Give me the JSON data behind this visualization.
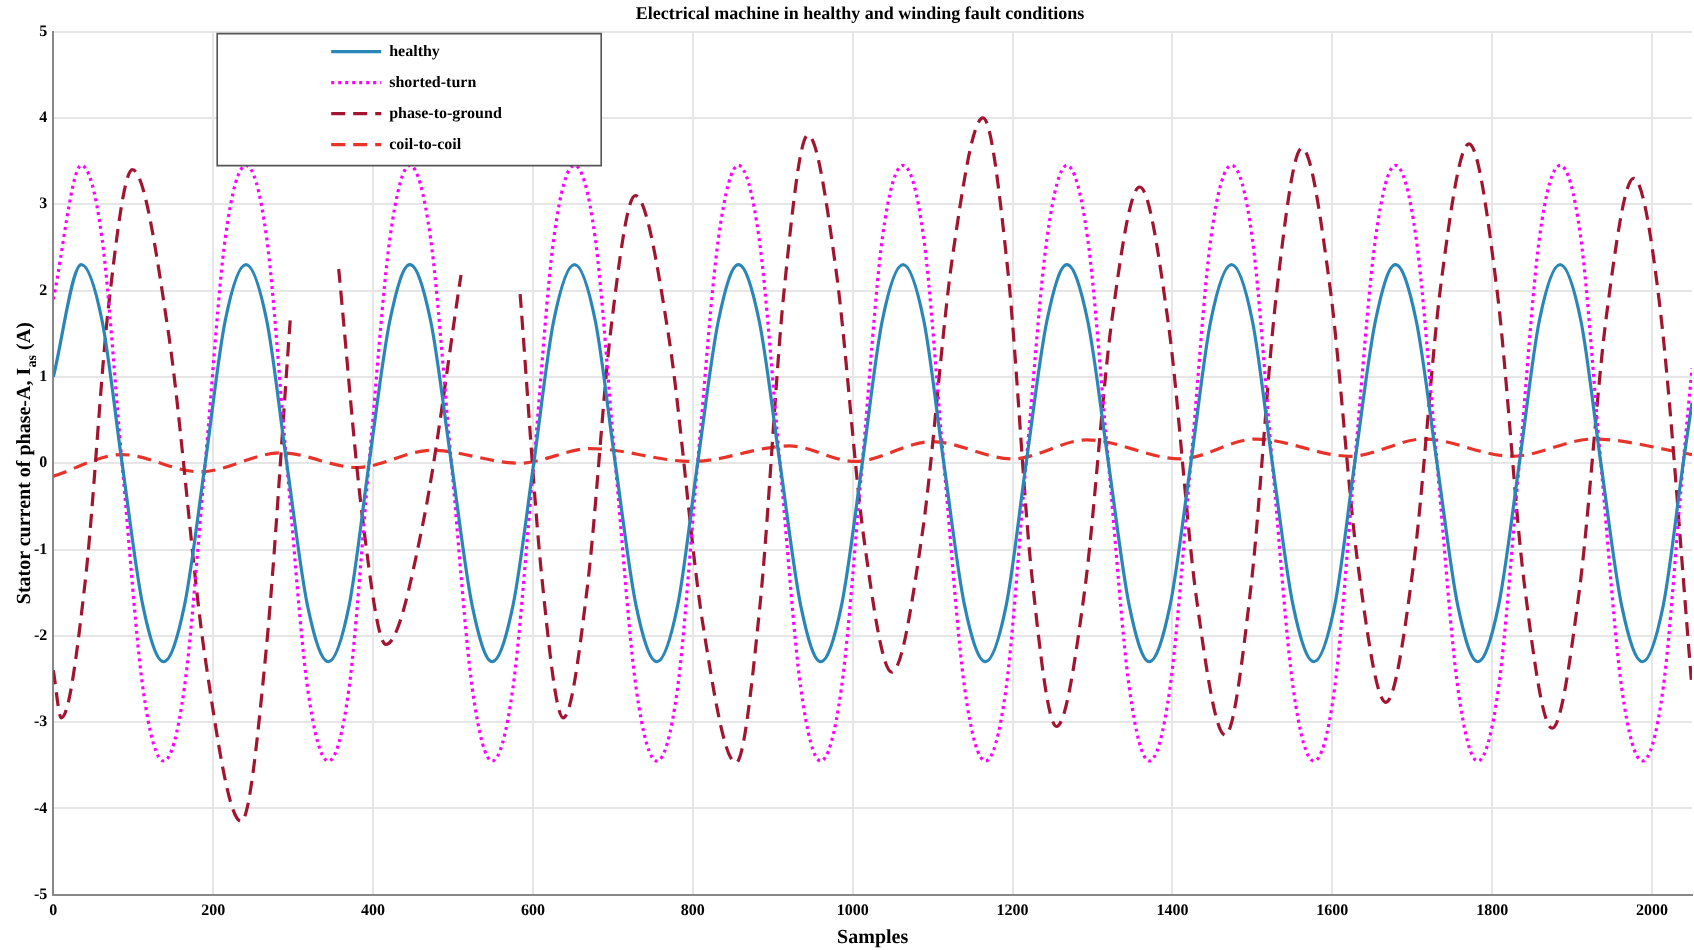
{
  "chart_data": {
    "type": "line",
    "title": "Electrical machine in healthy and winding fault conditions",
    "xlabel": "Samples",
    "ylabel": "Stator current of phase-A, I$_{as}$ (A)",
    "x": [
      0,
      35,
      61,
      86,
      112,
      138,
      164,
      190,
      215,
      241,
      267,
      292,
      318,
      344,
      370,
      395,
      421,
      446,
      472,
      498,
      524,
      549,
      575,
      601,
      626,
      652,
      678,
      703,
      729,
      755,
      781,
      806,
      832,
      857,
      883,
      909,
      935,
      960,
      986,
      1012,
      1037,
      1063,
      1089,
      1114,
      1140,
      1166,
      1192,
      1217,
      1243,
      1268,
      1294,
      1320,
      1346,
      1371,
      1397,
      1423,
      1448,
      1474,
      1500,
      1525,
      1551,
      1577,
      1603,
      1628,
      1654,
      1679,
      1705,
      1731,
      1757,
      1782,
      1808,
      1834,
      1859,
      1885,
      1911,
      1936,
      1962,
      1988,
      2014,
      2039,
      2050
    ],
    "series": [
      {
        "name": "healthy",
        "color": "#2b86b8",
        "line_style": "solid",
        "values": [
          1.0,
          2.3,
          1.65,
          0,
          -1.65,
          -2.3,
          -1.65,
          0,
          1.65,
          2.3,
          1.65,
          0,
          -1.65,
          -2.3,
          -1.65,
          0,
          1.65,
          2.3,
          1.65,
          0,
          -1.65,
          -2.3,
          -1.65,
          0,
          1.65,
          2.3,
          1.65,
          0,
          -1.65,
          -2.3,
          -1.65,
          0,
          1.65,
          2.3,
          1.65,
          0,
          -1.65,
          -2.3,
          -1.65,
          0,
          1.65,
          2.3,
          1.65,
          0,
          -1.65,
          -2.3,
          -1.65,
          0,
          1.65,
          2.3,
          1.65,
          0,
          -1.65,
          -2.3,
          -1.65,
          0,
          1.65,
          2.3,
          1.65,
          0,
          -1.65,
          -2.3,
          -1.65,
          0,
          1.65,
          2.3,
          1.65,
          0,
          -1.65,
          -2.3,
          -1.65,
          0,
          1.65,
          2.3,
          1.65,
          0,
          -1.65,
          -2.3,
          -1.65,
          0,
          0.7
        ]
      },
      {
        "name": "shorted-turn",
        "color": "#ff00ff",
        "line_style": "dotted",
        "values": [
          1.9,
          3.45,
          2.6,
          0,
          -2.6,
          -3.45,
          -2.6,
          0,
          2.6,
          3.45,
          2.6,
          0,
          -2.6,
          -3.45,
          -2.6,
          0,
          2.6,
          3.45,
          2.6,
          0,
          -2.6,
          -3.45,
          -2.6,
          0,
          2.6,
          3.45,
          2.6,
          0,
          -2.6,
          -3.45,
          -2.6,
          0,
          2.6,
          3.45,
          2.6,
          0,
          -2.6,
          -3.45,
          -2.6,
          0,
          2.6,
          3.45,
          2.6,
          0,
          -2.6,
          -3.45,
          -2.6,
          0,
          2.6,
          3.45,
          2.6,
          0,
          -2.6,
          -3.45,
          -2.6,
          0,
          2.6,
          3.45,
          2.6,
          0,
          -2.6,
          -3.45,
          -2.6,
          0,
          2.6,
          3.45,
          2.6,
          0,
          -2.6,
          -3.45,
          -2.6,
          0,
          2.6,
          3.45,
          2.6,
          0,
          -2.6,
          -3.45,
          -2.6,
          0,
          1.1
        ]
      },
      {
        "name": "phase-to-ground",
        "color": "#a2142f",
        "line_style": "dashed",
        "x": [
          0,
          10,
          40,
          69,
          99,
          144,
          190,
          235,
          266,
          297,
          328,
          357,
          387,
          416,
          463,
          510,
          557,
          584,
          611,
          638,
          668,
          698,
          728,
          770,
          812,
          854,
          884,
          914,
          944,
          979,
          1014,
          1049,
          1087,
          1125,
          1163,
          1194,
          1224,
          1255,
          1290,
          1324,
          1359,
          1395,
          1430,
          1466,
          1498,
          1530,
          1562,
          1597,
          1632,
          1667,
          1702,
          1736,
          1771,
          1806,
          1840,
          1875,
          1909,
          1943,
          1977,
          2010,
          2050
        ],
        "values": [
          -2.4,
          -2.95,
          -1.36,
          1.81,
          3.4,
          1.51,
          -2.26,
          -4.15,
          -2.19,
          1.74,
          null,
          2.25,
          -0.65,
          -2.1,
          -0.67,
          2.18,
          null,
          1.96,
          -1.31,
          -2.95,
          -1.44,
          1.59,
          3.1,
          1.46,
          -1.83,
          -3.47,
          -1.65,
          1.98,
          3.8,
          2.25,
          -0.87,
          -2.42,
          -0.82,
          2.4,
          4.0,
          2.24,
          -1.29,
          -3.05,
          -1.49,
          1.64,
          3.2,
          1.61,
          -1.56,
          -3.15,
          -1.45,
          1.95,
          3.65,
          2.05,
          -1.17,
          -2.77,
          -1.15,
          2.08,
          3.7,
          2.01,
          -1.38,
          -3.07,
          -1.48,
          1.71,
          3.3,
          1.8,
          -2.6
        ]
      },
      {
        "name": "coil-to-coil",
        "color": "#e8332a",
        "line_style": "dashed",
        "x": [
          0,
          86,
          183,
          285,
          380,
          473,
          583,
          672,
          799,
          921,
          1003,
          1099,
          1200,
          1293,
          1410,
          1504,
          1623,
          1714,
          1825,
          1927,
          2050
        ],
        "values": [
          -0.15,
          0.1,
          -0.1,
          0.12,
          -0.05,
          0.15,
          0.0,
          0.17,
          0.02,
          0.2,
          0.02,
          0.25,
          0.05,
          0.27,
          0.05,
          0.28,
          0.08,
          0.28,
          0.08,
          0.28,
          0.1
        ]
      }
    ],
    "xlim": [
      0,
      2050
    ],
    "xticks": [
      0,
      200,
      400,
      600,
      800,
      1000,
      1200,
      1400,
      1600,
      1800,
      2000
    ],
    "ylim": [
      -5,
      5
    ],
    "yticks": [
      -5,
      -4,
      -3,
      -2,
      -1,
      0,
      1,
      2,
      3,
      4,
      5
    ],
    "grid": true,
    "legend": "top left"
  }
}
